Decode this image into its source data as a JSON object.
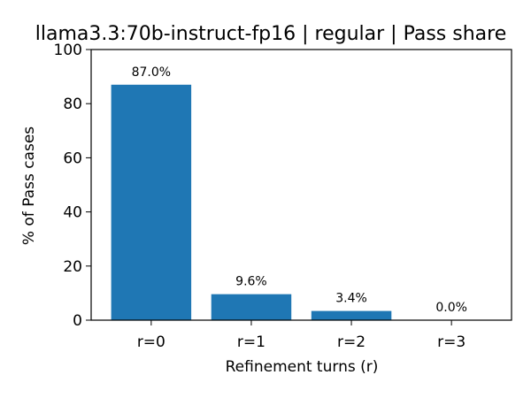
{
  "chart_data": {
    "type": "bar",
    "title": "llama3.3:70b-instruct-fp16 | regular | Pass share",
    "xlabel": "Refinement turns (r)",
    "ylabel": "% of Pass cases",
    "categories": [
      "r=0",
      "r=1",
      "r=2",
      "r=3"
    ],
    "values": [
      87.0,
      9.6,
      3.4,
      0.0
    ],
    "data_labels": [
      "87.0%",
      "9.6%",
      "3.4%",
      "0.0%"
    ],
    "ylim": [
      0,
      100
    ],
    "yticks": [
      0,
      20,
      40,
      60,
      80,
      100
    ],
    "ytick_labels": [
      "0",
      "20",
      "40",
      "60",
      "80",
      "100"
    ],
    "grid": false,
    "legend": "none",
    "bar_color": "#1f77b4"
  }
}
